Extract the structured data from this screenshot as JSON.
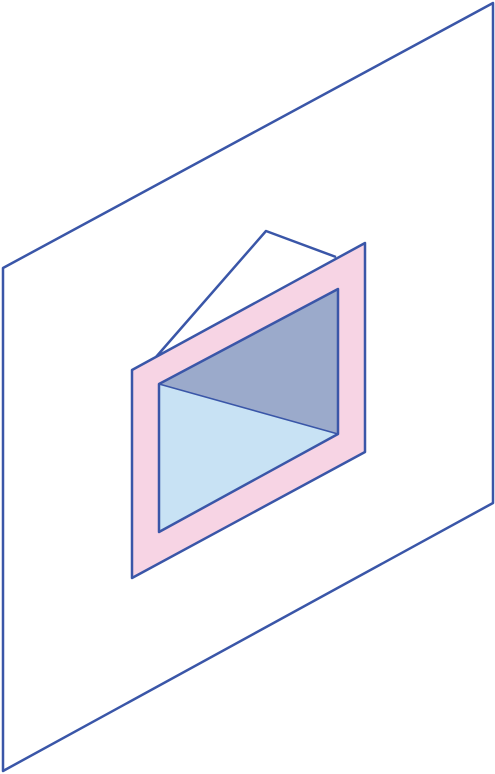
{
  "diagram": {
    "description_visible_text": "",
    "colors": {
      "outline": "#3a56a8",
      "frame_fill": "#f7d4e4",
      "back_face_fill": "#9baacb",
      "front_face_fill": "#c8e2f4",
      "background": "#ffffff"
    },
    "parts": [
      "wall-panel",
      "opening-frame",
      "opening-back-face",
      "opening-front-face",
      "opening-top-flap"
    ]
  }
}
